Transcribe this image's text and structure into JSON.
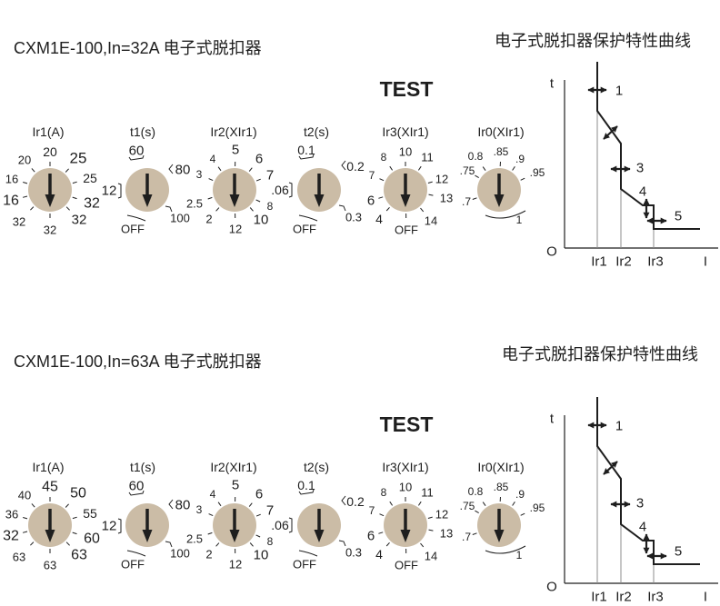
{
  "colors": {
    "dial_face": "#cbbca6",
    "ink": "#1e1e1e",
    "guide": "#8c8c8c"
  },
  "panels": [
    {
      "title": "CXM1E-100,In=32A 电子式脱扣器",
      "test_label": "TEST",
      "dials": [
        {
          "name": "Ir1(A)",
          "labels": [
            "20",
            "20",
            "25",
            "16",
            "25",
            "16",
            "32",
            "32",
            "32",
            "32"
          ]
        },
        {
          "name": "t1(s)",
          "labels": [
            "60",
            "80",
            "12",
            "100",
            "OFF"
          ]
        },
        {
          "name": "Ir2(XIr1)",
          "labels": [
            "5",
            "4",
            "6",
            "3",
            "7",
            "2.5",
            "8",
            "2",
            "10",
            "12"
          ]
        },
        {
          "name": "t2(s)",
          "labels": [
            "0.1",
            "0.2",
            ".06",
            "0.3",
            "OFF"
          ]
        },
        {
          "name": "Ir3(XIr1)",
          "labels": [
            "10",
            "8",
            "11",
            "7",
            "12",
            "6",
            "13",
            "4",
            "14",
            "OFF"
          ]
        },
        {
          "name": "Ir0(XIr1)",
          "labels": [
            ".85",
            "0.8",
            ".9",
            ".75",
            ".95",
            ".7",
            "1"
          ]
        }
      ],
      "curve": {
        "title": "电子式脱扣器保护特性曲线",
        "t_axis": "t",
        "origin": "O",
        "i_axis": "I",
        "thresholds": [
          "Ir1",
          "Ir2",
          "Ir3"
        ],
        "zones": [
          "1",
          "3",
          "4",
          "5"
        ]
      }
    },
    {
      "title": "CXM1E-100,In=63A 电子式脱扣器",
      "test_label": "TEST",
      "dials": [
        {
          "name": "Ir1(A)",
          "labels": [
            "45",
            "40",
            "50",
            "36",
            "55",
            "32",
            "60",
            "63",
            "63",
            "63"
          ]
        },
        {
          "name": "t1(s)",
          "labels": [
            "60",
            "80",
            "12",
            "100",
            "OFF"
          ]
        },
        {
          "name": "Ir2(XIr1)",
          "labels": [
            "5",
            "4",
            "6",
            "3",
            "7",
            "2.5",
            "8",
            "2",
            "10",
            "12"
          ]
        },
        {
          "name": "t2(s)",
          "labels": [
            "0.1",
            "0.2",
            ".06",
            "0.3",
            "OFF"
          ]
        },
        {
          "name": "Ir3(XIr1)",
          "labels": [
            "10",
            "8",
            "11",
            "7",
            "12",
            "6",
            "13",
            "4",
            "14",
            "OFF"
          ]
        },
        {
          "name": "Ir0(XIr1)",
          "labels": [
            ".85",
            "0.8",
            ".9",
            ".75",
            ".95",
            ".7",
            "1"
          ]
        }
      ],
      "curve": {
        "title": "电子式脱扣器保护特性曲线",
        "t_axis": "t",
        "origin": "O",
        "i_axis": "I",
        "thresholds": [
          "Ir1",
          "Ir2",
          "Ir3"
        ],
        "zones": [
          "1",
          "3",
          "4",
          "5"
        ]
      }
    }
  ]
}
